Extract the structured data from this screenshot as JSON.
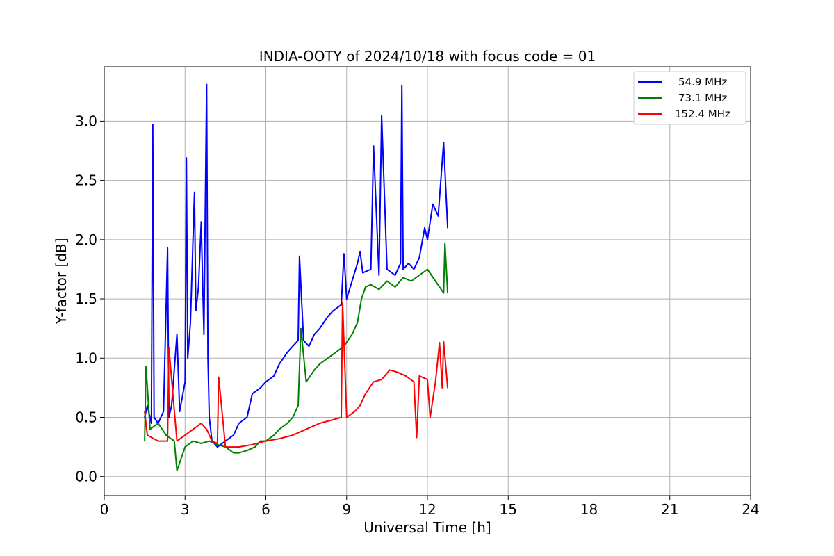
{
  "chart_data": {
    "type": "line",
    "title": "INDIA-OOTY of 2024/10/18 with focus code = 01",
    "xlabel": "Universal Time [h]",
    "ylabel": "Y-factor [dB]",
    "xlim": [
      0,
      24
    ],
    "ylim": [
      -0.16,
      3.46
    ],
    "xticks": [
      "0",
      "3",
      "6",
      "9",
      "12",
      "15",
      "18",
      "21",
      "24"
    ],
    "yticks": [
      "0.0",
      "0.5",
      "1.0",
      "1.5",
      "2.0",
      "2.5",
      "3.0"
    ],
    "grid": true,
    "legend_position": "top-right",
    "series": [
      {
        "name": "54.9 MHz",
        "color": "#0000ff",
        "x": [
          1.5,
          1.6,
          1.75,
          1.8,
          1.85,
          2.0,
          2.2,
          2.35,
          2.4,
          2.5,
          2.7,
          2.8,
          3.0,
          3.05,
          3.1,
          3.2,
          3.35,
          3.4,
          3.5,
          3.6,
          3.7,
          3.8,
          3.85,
          3.9,
          4.0,
          4.2,
          4.5,
          4.8,
          5.0,
          5.3,
          5.5,
          5.8,
          6.0,
          6.3,
          6.5,
          6.8,
          7.0,
          7.2,
          7.25,
          7.4,
          7.6,
          7.8,
          8.0,
          8.3,
          8.5,
          8.8,
          8.9,
          9.0,
          9.2,
          9.4,
          9.5,
          9.6,
          9.9,
          10.0,
          10.2,
          10.3,
          10.5,
          10.8,
          11.0,
          11.05,
          11.1,
          11.3,
          11.5,
          11.7,
          11.9,
          12.0,
          12.2,
          12.4,
          12.6,
          12.7,
          12.75
        ],
        "y": [
          0.5,
          0.6,
          0.45,
          2.97,
          0.5,
          0.45,
          0.55,
          1.93,
          0.5,
          0.6,
          1.2,
          0.55,
          0.8,
          2.69,
          1.0,
          1.3,
          2.4,
          1.4,
          1.6,
          2.15,
          1.2,
          3.31,
          1.0,
          0.5,
          0.3,
          0.25,
          0.3,
          0.35,
          0.45,
          0.5,
          0.7,
          0.75,
          0.8,
          0.85,
          0.95,
          1.05,
          1.1,
          1.15,
          1.86,
          1.15,
          1.1,
          1.2,
          1.25,
          1.35,
          1.4,
          1.45,
          1.88,
          1.5,
          1.65,
          1.8,
          1.9,
          1.72,
          1.75,
          2.79,
          1.7,
          3.05,
          1.75,
          1.7,
          1.8,
          3.3,
          1.75,
          1.8,
          1.75,
          1.85,
          2.1,
          2.0,
          2.3,
          2.2,
          2.82,
          2.35,
          2.1
        ]
      },
      {
        "name": "73.1 MHz",
        "color": "#008000",
        "x": [
          1.5,
          1.55,
          1.7,
          2.0,
          2.3,
          2.6,
          2.7,
          3.0,
          3.3,
          3.6,
          3.9,
          4.2,
          4.5,
          4.8,
          5.0,
          5.3,
          5.6,
          5.8,
          6.0,
          6.3,
          6.5,
          6.8,
          7.0,
          7.2,
          7.3,
          7.5,
          7.8,
          8.0,
          8.3,
          8.6,
          8.9,
          9.2,
          9.4,
          9.55,
          9.7,
          9.9,
          10.2,
          10.5,
          10.8,
          11.1,
          11.4,
          11.7,
          12.0,
          12.3,
          12.6,
          12.65,
          12.75
        ],
        "y": [
          0.3,
          0.93,
          0.4,
          0.45,
          0.35,
          0.3,
          0.05,
          0.25,
          0.3,
          0.28,
          0.3,
          0.27,
          0.25,
          0.2,
          0.2,
          0.22,
          0.25,
          0.3,
          0.3,
          0.35,
          0.4,
          0.45,
          0.5,
          0.6,
          1.25,
          0.8,
          0.9,
          0.95,
          1.0,
          1.05,
          1.1,
          1.2,
          1.3,
          1.5,
          1.6,
          1.62,
          1.58,
          1.65,
          1.6,
          1.68,
          1.65,
          1.7,
          1.75,
          1.65,
          1.55,
          1.97,
          1.55
        ]
      },
      {
        "name": "152.4 MHz",
        "color": "#ff0000",
        "x": [
          1.5,
          1.6,
          2.0,
          2.35,
          2.4,
          2.7,
          3.0,
          3.3,
          3.6,
          3.8,
          4.0,
          4.2,
          4.25,
          4.5,
          5.0,
          5.5,
          6.0,
          6.5,
          7.0,
          7.5,
          8.0,
          8.5,
          8.8,
          8.85,
          9.0,
          9.3,
          9.5,
          9.7,
          10.0,
          10.3,
          10.6,
          10.9,
          11.2,
          11.5,
          11.6,
          11.7,
          12.0,
          12.1,
          12.3,
          12.45,
          12.55,
          12.6,
          12.75
        ],
        "y": [
          0.55,
          0.35,
          0.3,
          0.3,
          1.09,
          0.3,
          0.35,
          0.4,
          0.45,
          0.4,
          0.3,
          0.28,
          0.84,
          0.25,
          0.25,
          0.27,
          0.3,
          0.32,
          0.35,
          0.4,
          0.45,
          0.48,
          0.5,
          1.47,
          0.5,
          0.55,
          0.6,
          0.7,
          0.8,
          0.82,
          0.9,
          0.88,
          0.85,
          0.8,
          0.33,
          0.85,
          0.82,
          0.5,
          0.8,
          1.13,
          0.75,
          1.14,
          0.75
        ]
      }
    ]
  }
}
